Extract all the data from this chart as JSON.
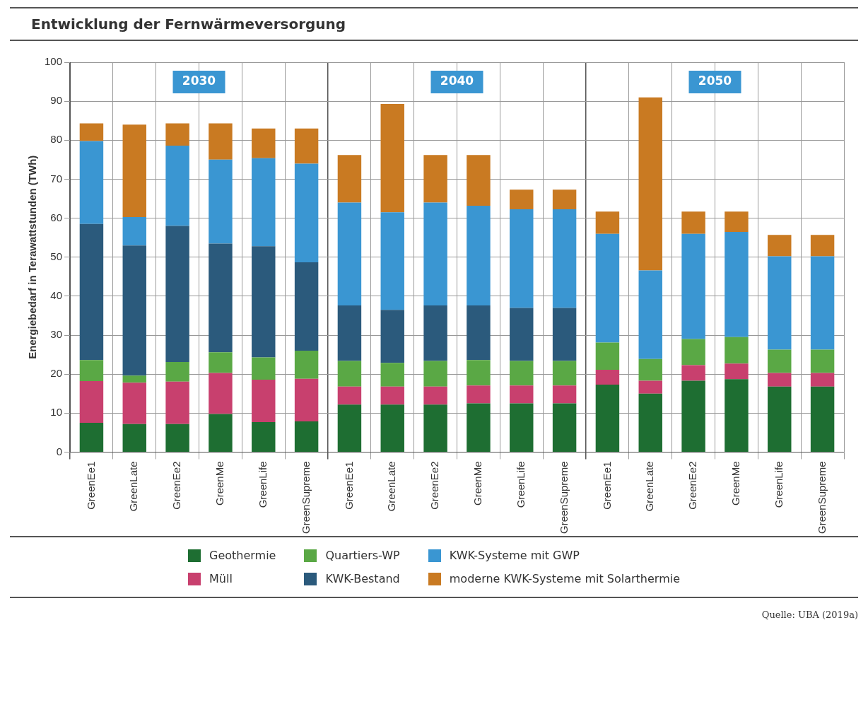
{
  "chart_data": {
    "type": "bar",
    "stacked": true,
    "title": "Entwicklung der Fernwärmeversorgung",
    "ylabel": "Energiebedarf in Terawattstunden (TWh)",
    "categories": [
      "GreenEe1",
      "GreenLate",
      "GreenEe2",
      "GreenMe",
      "GreenLife",
      "GreenSupreme",
      "GreenEe1",
      "GreenLate",
      "GreenEe2",
      "GreenMe",
      "GreenLife",
      "GreenSupreme",
      "GreenEe1",
      "GreenLate",
      "GreenEe2",
      "GreenMe",
      "GreenLife",
      "GreenSupreme"
    ],
    "series": [
      {
        "name": "Geothermie",
        "color": "#1e6e32",
        "values": [
          7.5,
          7.2,
          7.2,
          9.8,
          7.7,
          7.9,
          12.2,
          12.2,
          12.2,
          12.5,
          12.5,
          12.5,
          17.3,
          15,
          18.3,
          18.7,
          16.8,
          16.8
        ]
      },
      {
        "name": "Müll",
        "color": "#c8406e",
        "values": [
          10.7,
          10.6,
          10.9,
          10.5,
          10.9,
          10.9,
          4.6,
          4.6,
          4.6,
          4.6,
          4.6,
          4.6,
          3.8,
          3.3,
          4,
          4,
          3.5,
          3.5
        ]
      },
      {
        "name": "Quartiers-WP",
        "color": "#5aa845",
        "values": [
          5.4,
          1.8,
          5,
          5.3,
          5.7,
          7.2,
          6.6,
          6.1,
          6.6,
          6.5,
          6.3,
          6.3,
          7,
          5.6,
          6.7,
          6.8,
          6,
          6
        ]
      },
      {
        "name": "KWK-Bestand",
        "color": "#2b5a7c",
        "values": [
          34.9,
          33.4,
          34.9,
          27.9,
          28.5,
          22.7,
          14.2,
          13.6,
          14.2,
          14,
          13.6,
          13.6,
          0,
          0,
          0,
          0,
          0,
          0
        ]
      },
      {
        "name": "KWK-Systeme mit GWP",
        "color": "#3a96d2",
        "values": [
          21.3,
          7.3,
          20.6,
          21.5,
          22.6,
          25.3,
          26.4,
          25,
          26.4,
          25.6,
          25.3,
          25.3,
          27.9,
          22.7,
          27,
          27,
          23.9,
          23.9
        ]
      },
      {
        "name": "moderne KWK-Systeme mit Solarthermie",
        "color": "#c97a22",
        "values": [
          4.5,
          23.7,
          5.7,
          9.3,
          7.6,
          9,
          12.2,
          27.8,
          12.2,
          13,
          5,
          5,
          5.7,
          44.4,
          5.7,
          5.2,
          5.5,
          5.5
        ]
      }
    ],
    "ylim": [
      0,
      100
    ],
    "yticks": [
      0,
      10,
      20,
      30,
      40,
      50,
      60,
      70,
      80,
      90,
      100
    ],
    "grid": true,
    "legend": "bottom",
    "annotations": [
      "2030",
      "2040",
      "2050",
      "Quelle: UBA (2019a)"
    ]
  }
}
